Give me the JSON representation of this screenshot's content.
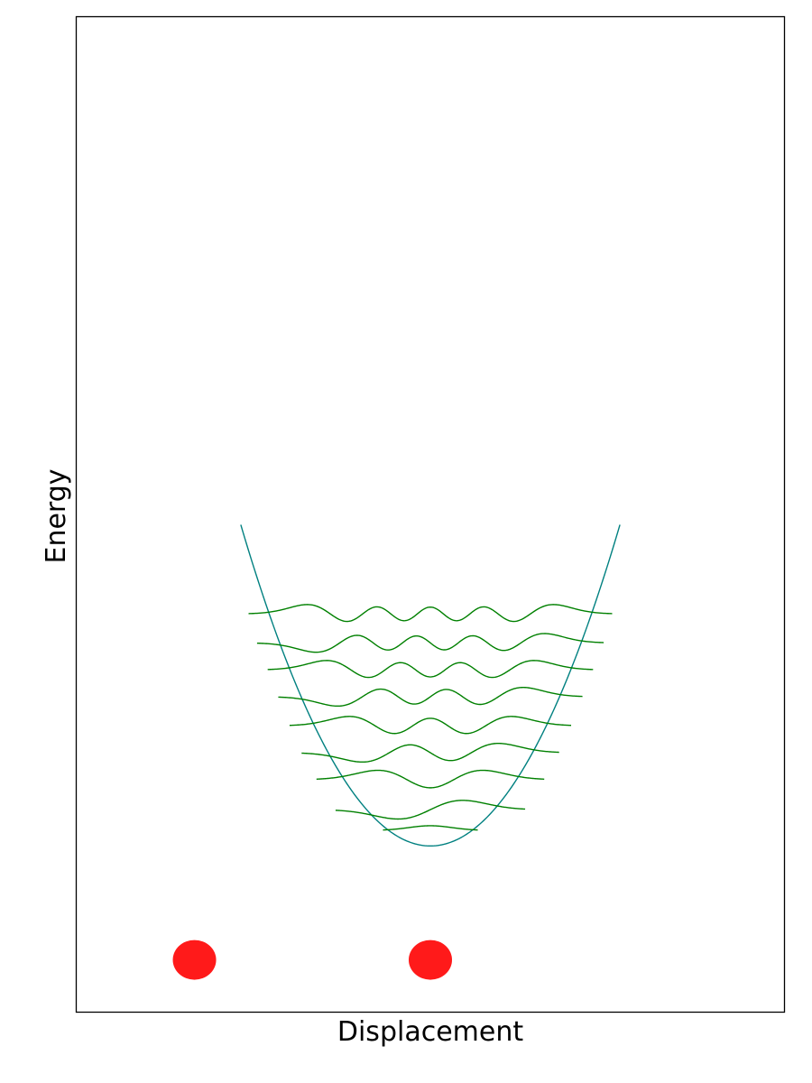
{
  "chart_data": {
    "type": "line",
    "title": "",
    "xlabel": "Displacement",
    "ylabel": "Energy",
    "xlim": [
      -1.0,
      1.0
    ],
    "ylim": [
      -1.6,
      8.0
    ],
    "xticks": [],
    "yticks": [],
    "grid": false,
    "legend": "none",
    "series": [
      {
        "kind": "potential",
        "color": "#008080",
        "x": [
          -0.536,
          -0.402,
          -0.268,
          -0.134,
          0.0,
          0.134,
          0.268,
          0.402,
          0.536
        ],
        "y": [
          3.1,
          1.75,
          0.8,
          0.2,
          0.0,
          0.2,
          0.8,
          1.75,
          3.1
        ]
      },
      {
        "kind": "wavefunctions",
        "color": "#008000",
        "levels": [
          {
            "n": 0,
            "baseline": 0.15,
            "amplitude": 0.045,
            "x_range": [
              -0.134,
              0.134
            ]
          },
          {
            "n": 1,
            "baseline": 0.35,
            "amplitude": 0.09,
            "x_range": [
              -0.268,
              0.268
            ]
          },
          {
            "n": 2,
            "baseline": 0.64,
            "amplitude": 0.09,
            "x_range": [
              -0.322,
              0.322
            ]
          },
          {
            "n": 3,
            "baseline": 0.9,
            "amplitude": 0.09,
            "x_range": [
              -0.364,
              0.364
            ]
          },
          {
            "n": 4,
            "baseline": 1.16,
            "amplitude": 0.09,
            "x_range": [
              -0.398,
              0.398
            ]
          },
          {
            "n": 5,
            "baseline": 1.44,
            "amplitude": 0.09,
            "x_range": [
              -0.43,
              0.43
            ]
          },
          {
            "n": 6,
            "baseline": 1.7,
            "amplitude": 0.09,
            "x_range": [
              -0.46,
              0.46
            ]
          },
          {
            "n": 7,
            "baseline": 1.96,
            "amplitude": 0.09,
            "x_range": [
              -0.49,
              0.49
            ]
          },
          {
            "n": 8,
            "baseline": 2.24,
            "amplitude": 0.09,
            "x_range": [
              -0.514,
              0.514
            ]
          }
        ]
      },
      {
        "kind": "markers",
        "color": "#ff1a1a",
        "points": [
          {
            "x": -0.667,
            "y": -1.1
          },
          {
            "x": 0.0,
            "y": -1.1
          }
        ]
      }
    ]
  }
}
